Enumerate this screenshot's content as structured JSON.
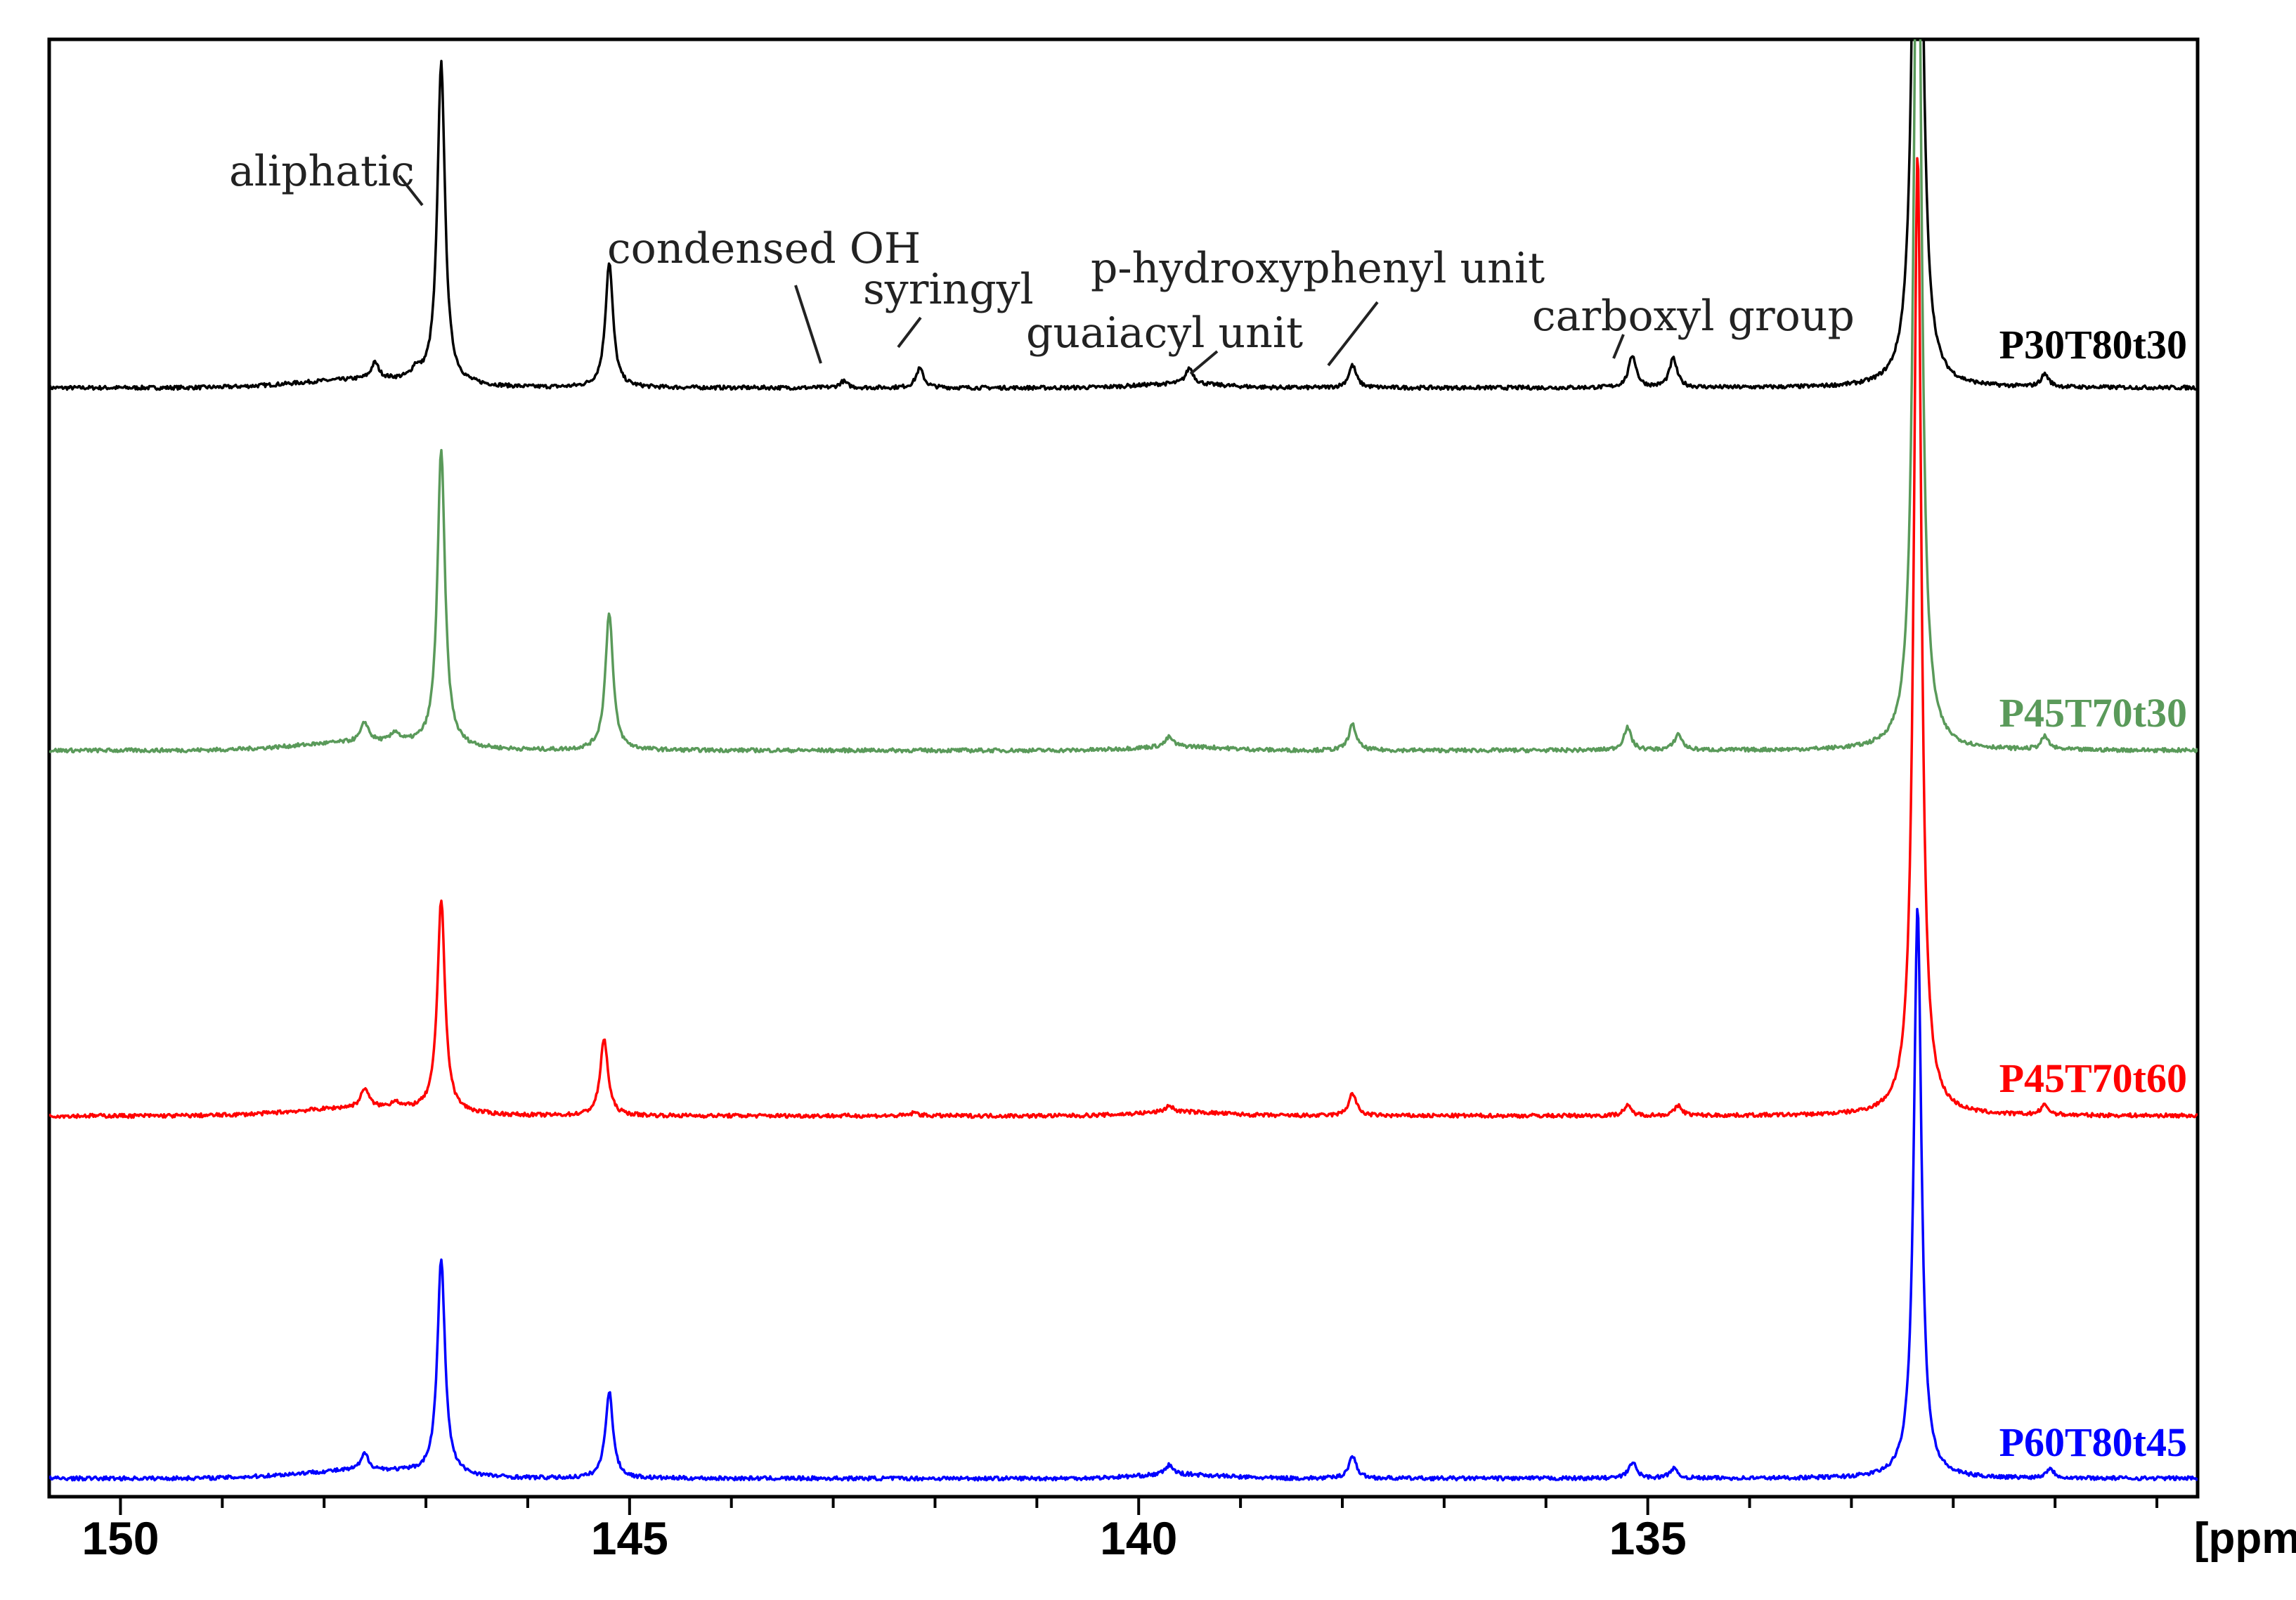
{
  "chart_data": {
    "type": "line",
    "title": "",
    "xlabel": "[ppm]",
    "ylabel": "",
    "x_reversed": true,
    "xlim": [
      150.7,
      129.6
    ],
    "x_ticks": [
      150,
      145,
      140,
      135
    ],
    "x_tick_labels": [
      "150",
      "145",
      "140",
      "135"
    ],
    "minor_tick_step": 1,
    "grid": false,
    "legend": "labels at right end of each trace",
    "stacked": true,
    "series": [
      {
        "name": "P30T80t30",
        "color": "#000000",
        "baseline": 0.002,
        "peaks": [
          {
            "x": 146.85,
            "h": 1.0
          },
          {
            "x": 145.2,
            "h": 0.39
          },
          {
            "x": 147.5,
            "h": 0.05
          },
          {
            "x": 147.1,
            "h": 0.03
          },
          {
            "x": 142.15,
            "h": 0.06
          },
          {
            "x": 142.9,
            "h": 0.02
          },
          {
            "x": 139.5,
            "h": 0.05
          },
          {
            "x": 137.9,
            "h": 0.07
          },
          {
            "x": 135.15,
            "h": 0.1
          },
          {
            "x": 134.75,
            "h": 0.09
          },
          {
            "x": 132.35,
            "h": 3.0
          },
          {
            "x": 131.1,
            "h": 0.04
          }
        ]
      },
      {
        "name": "P45T70t30",
        "color": "#5a9a5a",
        "baseline": 0.002,
        "peaks": [
          {
            "x": 146.85,
            "h": 0.92
          },
          {
            "x": 145.2,
            "h": 0.43
          },
          {
            "x": 147.6,
            "h": 0.06
          },
          {
            "x": 147.3,
            "h": 0.03
          },
          {
            "x": 139.7,
            "h": 0.03
          },
          {
            "x": 137.9,
            "h": 0.08
          },
          {
            "x": 135.2,
            "h": 0.07
          },
          {
            "x": 134.7,
            "h": 0.05
          },
          {
            "x": 132.35,
            "h": 3.0
          },
          {
            "x": 131.1,
            "h": 0.04
          }
        ]
      },
      {
        "name": "P45T70t60",
        "color": "#ff0000",
        "baseline": 0.002,
        "peaks": [
          {
            "x": 146.85,
            "h": 0.66
          },
          {
            "x": 145.25,
            "h": 0.24
          },
          {
            "x": 147.6,
            "h": 0.06
          },
          {
            "x": 147.3,
            "h": 0.02
          },
          {
            "x": 142.2,
            "h": 0.01
          },
          {
            "x": 139.7,
            "h": 0.02
          },
          {
            "x": 137.9,
            "h": 0.07
          },
          {
            "x": 135.2,
            "h": 0.03
          },
          {
            "x": 134.7,
            "h": 0.03
          },
          {
            "x": 132.35,
            "h": 3.0
          },
          {
            "x": 131.1,
            "h": 0.03
          }
        ]
      },
      {
        "name": "P60T80t45",
        "color": "#0000ff",
        "baseline": 0.002,
        "peaks": [
          {
            "x": 146.85,
            "h": 0.67
          },
          {
            "x": 145.2,
            "h": 0.27
          },
          {
            "x": 147.6,
            "h": 0.05
          },
          {
            "x": 139.7,
            "h": 0.03
          },
          {
            "x": 137.9,
            "h": 0.07
          },
          {
            "x": 135.15,
            "h": 0.05
          },
          {
            "x": 134.75,
            "h": 0.03
          },
          {
            "x": 132.35,
            "h": 1.78
          },
          {
            "x": 131.05,
            "h": 0.03
          }
        ]
      }
    ],
    "annotations": [
      {
        "text": "aliphatic",
        "x": 146.85
      },
      {
        "text": "condensed OH",
        "x": 142.9
      },
      {
        "text": "syringyl",
        "x": 142.15
      },
      {
        "text": "p-hydroxyphenyl unit",
        "x": 137.9
      },
      {
        "text": "guaiacyl unit",
        "x": 139.2
      },
      {
        "text": "carboxyl group",
        "x": 134.95
      }
    ]
  }
}
